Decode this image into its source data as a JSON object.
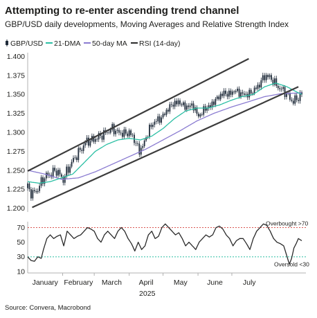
{
  "title": "Attempting to re-enter ascending trend channel",
  "subtitle": "GBP/USD daily developments, Moving Averages and Relative Strength Index",
  "source": "Source: Convera, Macrobond",
  "colors": {
    "candle": "#1f2b3a",
    "dma21": "#2bbfa4",
    "dma50": "#8a7bd1",
    "rsi": "#2a2a2a",
    "trend": "#3c3c3c",
    "overbought": "#d9534f",
    "oversold": "#2bbfa4",
    "axis": "#b0b0b0"
  },
  "legend": [
    {
      "label": "GBP/USD",
      "icon": "candlestick-icon",
      "color": "#1f2b3a"
    },
    {
      "label": "21-DMA",
      "icon": "line-icon",
      "color": "#2bbfa4"
    },
    {
      "label": "50-day MA",
      "icon": "line-icon",
      "color": "#8a7bd1"
    },
    {
      "label": "RSI (14-day)",
      "icon": "line-icon",
      "color": "#2a2a2a"
    }
  ],
  "chart_data": {
    "type": "line",
    "x_axis": {
      "months": [
        "January",
        "February",
        "March",
        "April",
        "May",
        "June",
        "July"
      ],
      "year": "2025"
    },
    "price_panel": {
      "ylim": [
        1.195,
        1.405
      ],
      "yticks": [
        "1.200",
        "1.225",
        "1.250",
        "1.275",
        "1.300",
        "1.325",
        "1.350",
        "1.375",
        "1.400"
      ],
      "ytick_values": [
        1.2,
        1.225,
        1.25,
        1.275,
        1.3,
        1.325,
        1.35,
        1.375,
        1.4
      ],
      "series": [
        {
          "name": "GBP/USD",
          "kind": "candlestick",
          "anchors": [
            [
              0,
              1.228
            ],
            [
              4,
              1.218
            ],
            [
              9,
              1.225
            ],
            [
              14,
              1.24
            ],
            [
              20,
              1.245
            ],
            [
              26,
              1.25
            ],
            [
              31,
              1.237
            ],
            [
              36,
              1.252
            ],
            [
              41,
              1.265
            ],
            [
              46,
              1.275
            ],
            [
              52,
              1.288
            ],
            [
              58,
              1.29
            ],
            [
              64,
              1.295
            ],
            [
              70,
              1.3
            ],
            [
              75,
              1.305
            ],
            [
              80,
              1.3
            ],
            [
              86,
              1.298
            ],
            [
              90,
              1.3
            ],
            [
              94,
              1.292
            ],
            [
              99,
              1.275
            ],
            [
              103,
              1.285
            ],
            [
              108,
              1.305
            ],
            [
              113,
              1.315
            ],
            [
              118,
              1.318
            ],
            [
              124,
              1.33
            ],
            [
              128,
              1.337
            ],
            [
              134,
              1.34
            ],
            [
              140,
              1.333
            ],
            [
              146,
              1.336
            ],
            [
              152,
              1.32
            ],
            [
              156,
              1.33
            ],
            [
              162,
              1.335
            ],
            [
              168,
              1.345
            ],
            [
              174,
              1.352
            ],
            [
              178,
              1.35
            ],
            [
              184,
              1.355
            ],
            [
              190,
              1.35
            ],
            [
              196,
              1.35
            ],
            [
              200,
              1.355
            ],
            [
              204,
              1.36
            ],
            [
              208,
              1.37
            ],
            [
              211,
              1.375
            ],
            [
              215,
              1.372
            ],
            [
              219,
              1.365
            ],
            [
              223,
              1.358
            ],
            [
              227,
              1.355
            ],
            [
              231,
              1.348
            ],
            [
              235,
              1.34
            ],
            [
              239,
              1.345
            ],
            [
              243,
              1.35
            ]
          ]
        },
        {
          "name": "21-DMA",
          "anchors": [
            [
              0,
              1.235
            ],
            [
              10,
              1.233
            ],
            [
              20,
              1.235
            ],
            [
              30,
              1.24
            ],
            [
              40,
              1.245
            ],
            [
              50,
              1.26
            ],
            [
              60,
              1.275
            ],
            [
              70,
              1.284
            ],
            [
              80,
              1.29
            ],
            [
              90,
              1.292
            ],
            [
              100,
              1.29
            ],
            [
              110,
              1.295
            ],
            [
              120,
              1.305
            ],
            [
              130,
              1.318
            ],
            [
              140,
              1.328
            ],
            [
              150,
              1.332
            ],
            [
              160,
              1.332
            ],
            [
              170,
              1.336
            ],
            [
              180,
              1.342
            ],
            [
              190,
              1.347
            ],
            [
              200,
              1.35
            ],
            [
              210,
              1.36
            ],
            [
              220,
              1.365
            ],
            [
              230,
              1.36
            ],
            [
              240,
              1.352
            ],
            [
              243,
              1.35
            ]
          ]
        },
        {
          "name": "50-day MA",
          "anchors": [
            [
              0,
              1.25
            ],
            [
              15,
              1.245
            ],
            [
              30,
              1.238
            ],
            [
              45,
              1.24
            ],
            [
              60,
              1.248
            ],
            [
              75,
              1.258
            ],
            [
              90,
              1.268
            ],
            [
              105,
              1.278
            ],
            [
              120,
              1.29
            ],
            [
              135,
              1.302
            ],
            [
              150,
              1.315
            ],
            [
              165,
              1.325
            ],
            [
              180,
              1.333
            ],
            [
              195,
              1.34
            ],
            [
              210,
              1.347
            ],
            [
              225,
              1.351
            ],
            [
              243,
              1.352
            ]
          ]
        }
      ],
      "trend_lines": [
        {
          "name": "upper-trend",
          "points": [
            [
              0,
              1.249
            ],
            [
              196,
              1.397
            ]
          ]
        },
        {
          "name": "lower-trend",
          "points": [
            [
              4,
              1.201
            ],
            [
              240,
              1.36
            ]
          ]
        }
      ]
    },
    "rsi_panel": {
      "ylim": [
        8,
        78
      ],
      "yticks": [
        "10",
        "30",
        "50",
        "70"
      ],
      "ytick_values": [
        10,
        30,
        50,
        70
      ],
      "overbought": 70,
      "oversold": 30,
      "overbought_label": "Overbought >70",
      "oversold_label": "Oversold <30",
      "series": [
        {
          "name": "RSI (14-day)",
          "anchors": [
            [
              0,
              30
            ],
            [
              3,
              25
            ],
            [
              6,
              24
            ],
            [
              9,
              30
            ],
            [
              12,
              28
            ],
            [
              14,
              40
            ],
            [
              17,
              55
            ],
            [
              20,
              60
            ],
            [
              23,
              55
            ],
            [
              26,
              58
            ],
            [
              29,
              60
            ],
            [
              32,
              45
            ],
            [
              35,
              65
            ],
            [
              38,
              60
            ],
            [
              41,
              55
            ],
            [
              44,
              58
            ],
            [
              47,
              60
            ],
            [
              50,
              65
            ],
            [
              53,
              70
            ],
            [
              56,
              68
            ],
            [
              59,
              65
            ],
            [
              62,
              55
            ],
            [
              65,
              50
            ],
            [
              68,
              60
            ],
            [
              71,
              65
            ],
            [
              74,
              60
            ],
            [
              77,
              55
            ],
            [
              80,
              65
            ],
            [
              83,
              70
            ],
            [
              86,
              65
            ],
            [
              89,
              55
            ],
            [
              92,
              48
            ],
            [
              95,
              38
            ],
            [
              98,
              50
            ],
            [
              101,
              40
            ],
            [
              104,
              45
            ],
            [
              107,
              60
            ],
            [
              110,
              65
            ],
            [
              113,
              55
            ],
            [
              116,
              58
            ],
            [
              119,
              70
            ],
            [
              122,
              75
            ],
            [
              125,
              70
            ],
            [
              128,
              65
            ],
            [
              131,
              60
            ],
            [
              134,
              63
            ],
            [
              137,
              55
            ],
            [
              140,
              45
            ],
            [
              143,
              50
            ],
            [
              146,
              45
            ],
            [
              149,
              40
            ],
            [
              152,
              50
            ],
            [
              155,
              55
            ],
            [
              158,
              60
            ],
            [
              161,
              57
            ],
            [
              164,
              60
            ],
            [
              167,
              70
            ],
            [
              170,
              72
            ],
            [
              173,
              68
            ],
            [
              176,
              60
            ],
            [
              179,
              55
            ],
            [
              182,
              45
            ],
            [
              185,
              52
            ],
            [
              188,
              55
            ],
            [
              191,
              55
            ],
            [
              194,
              48
            ],
            [
              197,
              40
            ],
            [
              200,
              55
            ],
            [
              203,
              65
            ],
            [
              206,
              70
            ],
            [
              209,
              75
            ],
            [
              212,
              73
            ],
            [
              215,
              65
            ],
            [
              218,
              55
            ],
            [
              221,
              50
            ],
            [
              224,
              48
            ],
            [
              227,
              45
            ],
            [
              230,
              30
            ],
            [
              232,
              20
            ],
            [
              234,
              28
            ],
            [
              236,
              42
            ],
            [
              238,
              48
            ],
            [
              240,
              55
            ],
            [
              243,
              52
            ]
          ]
        }
      ]
    }
  }
}
